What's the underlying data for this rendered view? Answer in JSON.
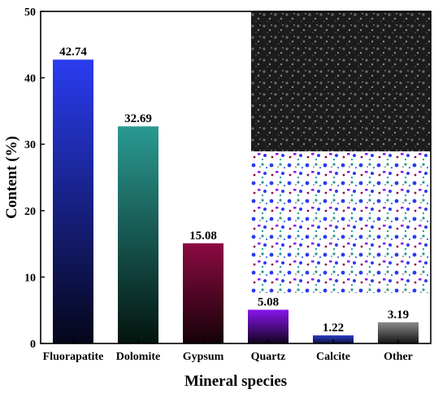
{
  "chart_data": {
    "type": "bar",
    "categories": [
      "Fluorapatite",
      "Dolomite",
      "Gypsum",
      "Quartz",
      "Calcite",
      "Other"
    ],
    "values": [
      42.74,
      32.69,
      15.08,
      5.08,
      1.22,
      3.19
    ],
    "value_labels": [
      "42.74",
      "32.69",
      "15.08",
      "5.08",
      "1.22",
      "3.19"
    ],
    "bar_colors": [
      [
        "#2a3cf0",
        "#05061a"
      ],
      [
        "#2a9a92",
        "#04140f"
      ],
      [
        "#8c0a42",
        "#150208"
      ],
      [
        "#8a14ee",
        "#12041e"
      ],
      [
        "#2c3cc4",
        "#0a1040"
      ],
      [
        "#8a8a8a",
        "#151515"
      ]
    ],
    "xlabel": "Mineral species",
    "ylabel": "Content (%)",
    "ylim": [
      0,
      50
    ],
    "yticks": [
      "0",
      "10",
      "20",
      "30",
      "40",
      "50"
    ],
    "grid": false,
    "inset_images": [
      "grayscale-sem-micrograph",
      "false-color-mineral-map"
    ]
  }
}
